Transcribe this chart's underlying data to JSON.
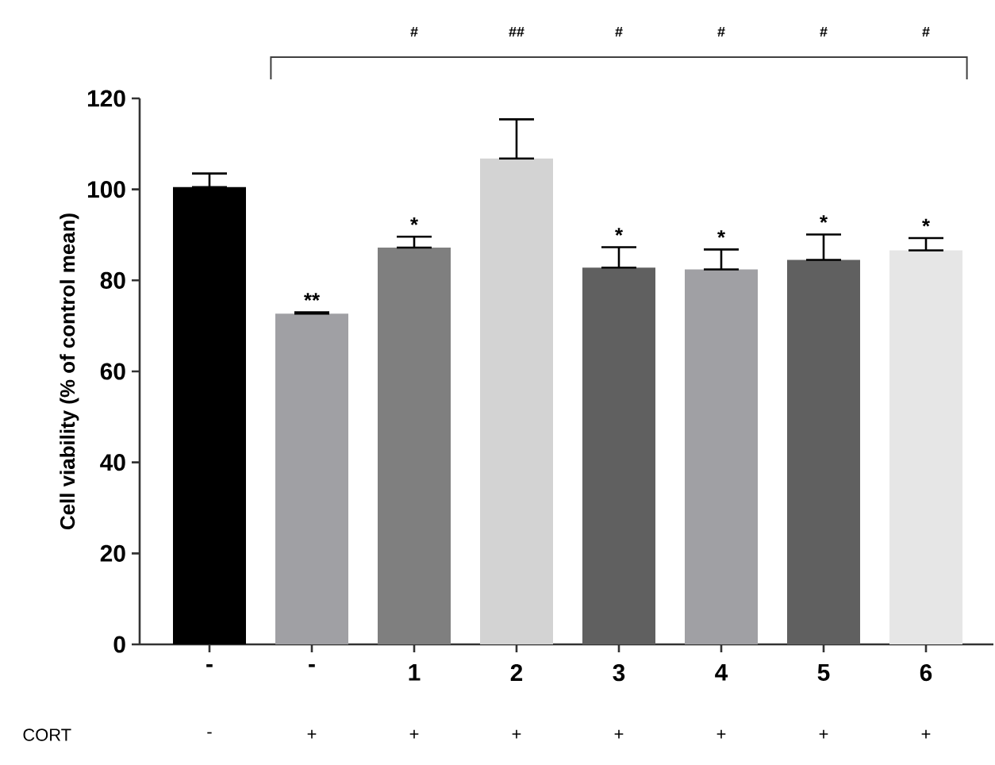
{
  "chart_data": {
    "type": "bar",
    "ylabel": "Cell viability (% of control mean)",
    "categories": [
      "-",
      "-",
      "1",
      "2",
      "3",
      "4",
      "5",
      "6"
    ],
    "values": [
      100.5,
      72.7,
      87.2,
      106.8,
      82.8,
      82.4,
      84.5,
      86.6
    ],
    "colors": [
      "#000000",
      "#a0a0a4",
      "#7f7f7f",
      "#d3d3d3",
      "#606060",
      "#a0a0a4",
      "#606060",
      "#e6e6e6"
    ],
    "errors": [
      [
        100.5,
        103.5
      ],
      [
        72.7,
        73.0
      ],
      [
        87.2,
        89.6
      ],
      [
        106.8,
        115.4
      ],
      [
        82.8,
        87.3
      ],
      [
        82.4,
        86.8
      ],
      [
        84.5,
        90.1
      ],
      [
        86.6,
        89.3
      ]
    ],
    "ylim": [
      0,
      120
    ],
    "yticks": [
      0,
      20,
      40,
      60,
      80,
      100,
      120
    ],
    "annotations": [
      {
        "text": "**",
        "y": 73.0
      },
      {
        "text": "*",
        "x": "1",
        "y": 89.6
      },
      {
        "text": "*",
        "x": "3",
        "y": 87.3
      },
      {
        "text": "*",
        "x": "4",
        "y": 86.8
      },
      {
        "text": "*",
        "x": "5",
        "y": 90.1
      },
      {
        "text": "*",
        "x": "6",
        "y": 89.3
      },
      "#",
      "##",
      "#",
      "#",
      "#",
      "#",
      "CORT",
      "-",
      "+",
      "+",
      "+",
      "+",
      "+",
      "+",
      "+"
    ]
  }
}
